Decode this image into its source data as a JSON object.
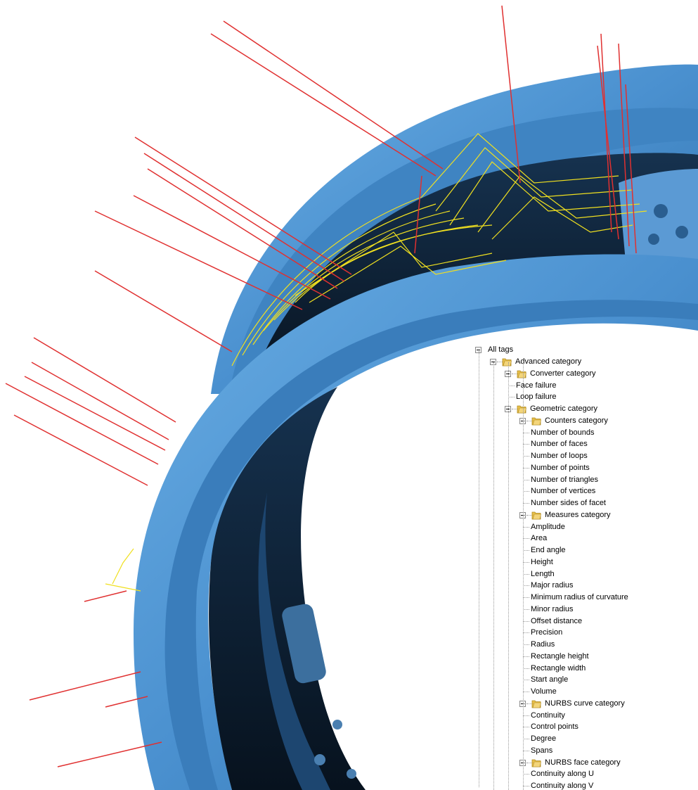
{
  "colors": {
    "part_blue": "#4a90cf",
    "part_dark": "#0b1a2b",
    "toolpath_yellow": "#f0e020",
    "tool_red": "#e03030",
    "folder_yellow": "#e8c04a"
  },
  "tree": {
    "root": "All tags",
    "nodes": [
      {
        "label": "Advanced category",
        "level": 1,
        "type": "folder"
      },
      {
        "label": "Converter category",
        "level": 2,
        "type": "folder"
      },
      {
        "label": "Face failure",
        "level": 3,
        "type": "leaf"
      },
      {
        "label": "Loop failure",
        "level": 3,
        "type": "leaf"
      },
      {
        "label": "Geometric category",
        "level": 2,
        "type": "folder"
      },
      {
        "label": "Counters category",
        "level": 3,
        "type": "folder"
      },
      {
        "label": "Number of bounds",
        "level": 4,
        "type": "leaf"
      },
      {
        "label": "Number of faces",
        "level": 4,
        "type": "leaf"
      },
      {
        "label": "Number of loops",
        "level": 4,
        "type": "leaf"
      },
      {
        "label": "Number of points",
        "level": 4,
        "type": "leaf"
      },
      {
        "label": "Number of triangles",
        "level": 4,
        "type": "leaf"
      },
      {
        "label": "Number of vertices",
        "level": 4,
        "type": "leaf"
      },
      {
        "label": "Number sides of facet",
        "level": 4,
        "type": "leaf"
      },
      {
        "label": "Measures category",
        "level": 3,
        "type": "folder"
      },
      {
        "label": "Amplitude",
        "level": 4,
        "type": "leaf"
      },
      {
        "label": "Area",
        "level": 4,
        "type": "leaf"
      },
      {
        "label": "End angle",
        "level": 4,
        "type": "leaf"
      },
      {
        "label": "Height",
        "level": 4,
        "type": "leaf"
      },
      {
        "label": "Length",
        "level": 4,
        "type": "leaf"
      },
      {
        "label": "Major radius",
        "level": 4,
        "type": "leaf"
      },
      {
        "label": "Minimum radius of curvature",
        "level": 4,
        "type": "leaf"
      },
      {
        "label": "Minor radius",
        "level": 4,
        "type": "leaf"
      },
      {
        "label": "Offset distance",
        "level": 4,
        "type": "leaf"
      },
      {
        "label": "Precision",
        "level": 4,
        "type": "leaf"
      },
      {
        "label": "Radius",
        "level": 4,
        "type": "leaf"
      },
      {
        "label": "Rectangle height",
        "level": 4,
        "type": "leaf"
      },
      {
        "label": "Rectangle width",
        "level": 4,
        "type": "leaf"
      },
      {
        "label": "Start angle",
        "level": 4,
        "type": "leaf"
      },
      {
        "label": "Volume",
        "level": 4,
        "type": "leaf"
      },
      {
        "label": "NURBS curve category",
        "level": 3,
        "type": "folder"
      },
      {
        "label": "Continuity",
        "level": 4,
        "type": "leaf"
      },
      {
        "label": "Control points",
        "level": 4,
        "type": "leaf"
      },
      {
        "label": "Degree",
        "level": 4,
        "type": "leaf"
      },
      {
        "label": "Spans",
        "level": 4,
        "type": "leaf"
      },
      {
        "label": "NURBS face category",
        "level": 3,
        "type": "folder"
      },
      {
        "label": "Continuity along U",
        "level": 4,
        "type": "leaf"
      },
      {
        "label": "Continuity along V",
        "level": 4,
        "type": "leaf"
      }
    ]
  }
}
